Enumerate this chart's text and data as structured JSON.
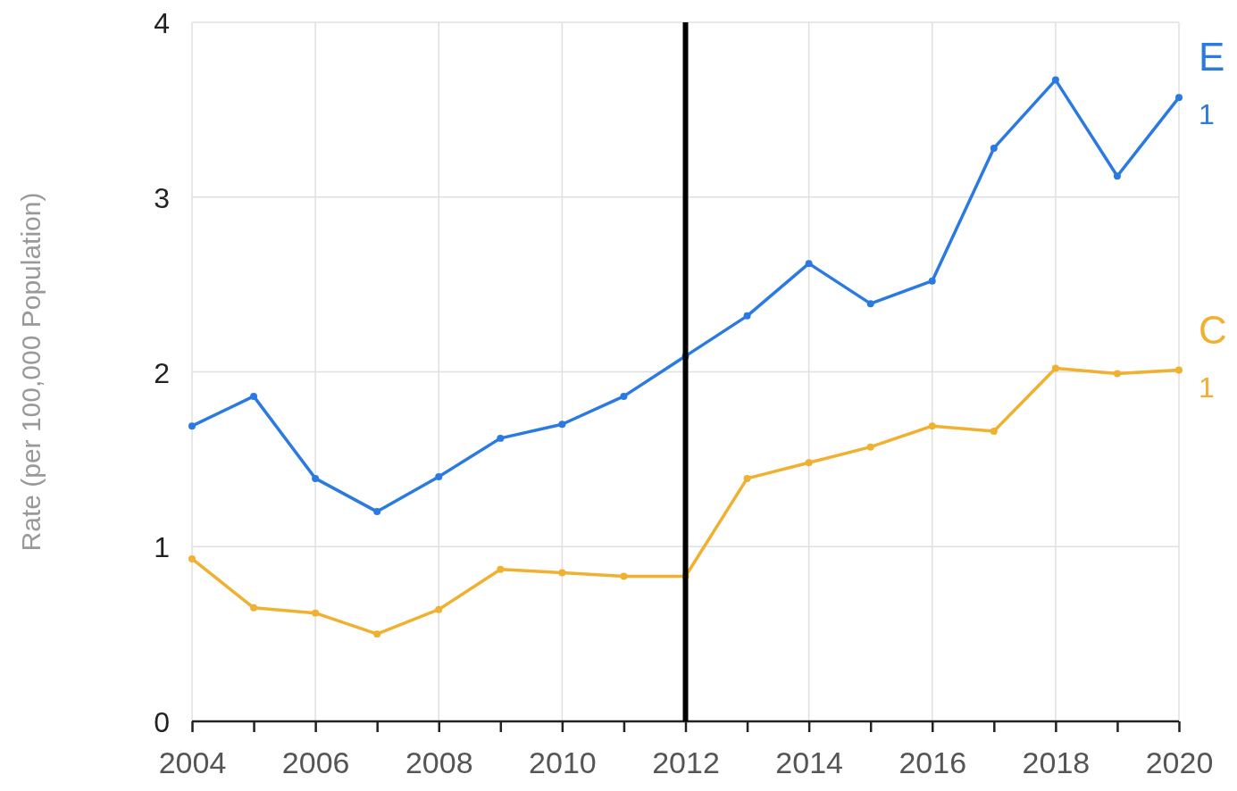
{
  "chart_data": {
    "type": "line",
    "ylabel": "Rate (per 100,000 Population)",
    "x": [
      2004,
      2005,
      2006,
      2007,
      2008,
      2009,
      2010,
      2011,
      2012,
      2013,
      2014,
      2015,
      2016,
      2017,
      2018,
      2019,
      2020
    ],
    "series": [
      {
        "name": "E",
        "color": "#2a7ae2",
        "values": [
          1.69,
          1.86,
          1.39,
          1.2,
          1.4,
          1.62,
          1.7,
          1.86,
          2.09,
          2.32,
          2.62,
          2.39,
          2.52,
          3.28,
          3.67,
          3.12,
          3.57
        ]
      },
      {
        "name": "C",
        "color": "#f0b030",
        "values": [
          0.93,
          0.65,
          0.62,
          0.5,
          0.64,
          0.87,
          0.85,
          0.83,
          0.83,
          1.39,
          1.48,
          1.57,
          1.69,
          1.66,
          2.02,
          1.99,
          2.01
        ]
      }
    ],
    "annotations": [
      "1",
      "1"
    ],
    "xlim": [
      2004,
      2020
    ],
    "xticks": [
      2004,
      {
        "value": 2005,
        "label": null
      },
      2006,
      {
        "value": 2007,
        "label": null
      },
      2008,
      {
        "value": 2009,
        "label": null
      },
      2010,
      {
        "value": 2011,
        "label": null
      },
      2012,
      {
        "value": 2013,
        "label": null
      },
      2014,
      {
        "value": 2015,
        "label": null
      },
      2016,
      {
        "value": 2017,
        "label": null
      },
      2018,
      {
        "value": 2019,
        "label": null
      },
      2020
    ],
    "ylim": [
      0,
      4
    ],
    "yticks": [
      0,
      1,
      2,
      3,
      4
    ],
    "grid": true,
    "marker": "circle",
    "line_style": "solid",
    "ref_lines": [
      {
        "axis": "x",
        "value": 2012,
        "color": "#000000"
      }
    ]
  }
}
